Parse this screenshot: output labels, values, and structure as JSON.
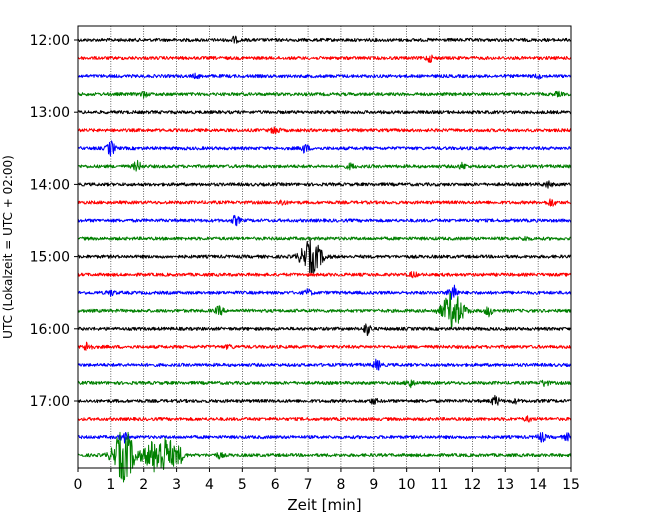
{
  "chart_data": {
    "type": "line",
    "title": "",
    "xlabel": "Zeit  [min]",
    "ylabel": "UTC (Lokalzeit = UTC + 02:00)",
    "xlim": [
      0,
      15
    ],
    "x_ticks": [
      "0",
      "1",
      "2",
      "3",
      "4",
      "5",
      "6",
      "7",
      "8",
      "9",
      "10",
      "11",
      "12",
      "13",
      "14",
      "15"
    ],
    "y_ticks": [
      "12:00",
      "13:00",
      "14:00",
      "15:00",
      "16:00",
      "17:00"
    ],
    "rows_per_hour": 4,
    "row_minutes": 15,
    "first_row_time": "12:00",
    "grid": "vertical dotted lines at each minute",
    "colors": [
      "#000000",
      "#ff0000",
      "#0000ff",
      "#008000"
    ],
    "series": [
      {
        "start": "12:00",
        "color": "#000000",
        "events": [
          {
            "t": 4.75,
            "amp": 0.35
          }
        ]
      },
      {
        "start": "12:15",
        "color": "#ff0000",
        "events": [
          {
            "t": 10.7,
            "amp": 0.4
          }
        ]
      },
      {
        "start": "12:30",
        "color": "#0000ff",
        "events": [
          {
            "t": 3.6,
            "amp": 0.2
          },
          {
            "t": 14.0,
            "amp": 0.2
          }
        ]
      },
      {
        "start": "12:45",
        "color": "#008000",
        "events": [
          {
            "t": 2.0,
            "amp": 0.3
          },
          {
            "t": 14.6,
            "amp": 0.2
          }
        ]
      },
      {
        "start": "13:00",
        "color": "#000000",
        "events": []
      },
      {
        "start": "13:15",
        "color": "#ff0000",
        "events": [
          {
            "t": 6.0,
            "amp": 0.45
          }
        ]
      },
      {
        "start": "13:30",
        "color": "#0000ff",
        "events": [
          {
            "t": 1.0,
            "amp": 0.9
          },
          {
            "t": 6.9,
            "amp": 0.5
          }
        ]
      },
      {
        "start": "13:45",
        "color": "#008000",
        "events": [
          {
            "t": 1.8,
            "amp": 0.6
          },
          {
            "t": 8.3,
            "amp": 0.3
          },
          {
            "t": 11.7,
            "amp": 0.35
          }
        ]
      },
      {
        "start": "14:00",
        "color": "#000000",
        "events": [
          {
            "t": 14.3,
            "amp": 0.35
          }
        ]
      },
      {
        "start": "14:15",
        "color": "#ff0000",
        "events": [
          {
            "t": 6.2,
            "amp": 0.3
          },
          {
            "t": 14.4,
            "amp": 0.45
          }
        ]
      },
      {
        "start": "14:30",
        "color": "#0000ff",
        "events": [
          {
            "t": 4.8,
            "amp": 0.55
          }
        ]
      },
      {
        "start": "14:45",
        "color": "#008000",
        "events": [
          {
            "t": 13.6,
            "amp": 0.2
          }
        ]
      },
      {
        "start": "15:00",
        "color": "#000000",
        "events": [
          {
            "t": 7.1,
            "amp": 2.0
          }
        ]
      },
      {
        "start": "15:15",
        "color": "#ff0000",
        "events": [
          {
            "t": 10.2,
            "amp": 0.3
          }
        ]
      },
      {
        "start": "15:30",
        "color": "#0000ff",
        "events": [
          {
            "t": 1.0,
            "amp": 0.3
          },
          {
            "t": 7.0,
            "amp": 0.35
          },
          {
            "t": 11.4,
            "amp": 1.4
          }
        ]
      },
      {
        "start": "15:45",
        "color": "#008000",
        "events": [
          {
            "t": 4.3,
            "amp": 0.5
          },
          {
            "t": 11.4,
            "amp": 2.2
          },
          {
            "t": 12.5,
            "amp": 0.6
          }
        ]
      },
      {
        "start": "16:00",
        "color": "#000000",
        "events": [
          {
            "t": 8.8,
            "amp": 0.7
          }
        ]
      },
      {
        "start": "16:15",
        "color": "#ff0000",
        "events": [
          {
            "t": 0.3,
            "amp": 0.6
          },
          {
            "t": 4.6,
            "amp": 0.2
          }
        ]
      },
      {
        "start": "16:30",
        "color": "#0000ff",
        "events": [
          {
            "t": 9.1,
            "amp": 0.6
          }
        ]
      },
      {
        "start": "16:45",
        "color": "#008000",
        "events": [
          {
            "t": 10.1,
            "amp": 0.5
          },
          {
            "t": 14.2,
            "amp": 0.35
          }
        ]
      },
      {
        "start": "17:00",
        "color": "#000000",
        "events": [
          {
            "t": 9.0,
            "amp": 0.3
          },
          {
            "t": 12.7,
            "amp": 0.6
          },
          {
            "t": 13.3,
            "amp": 0.2
          }
        ]
      },
      {
        "start": "17:15",
        "color": "#ff0000",
        "events": [
          {
            "t": 13.7,
            "amp": 0.25
          }
        ]
      },
      {
        "start": "17:30",
        "color": "#0000ff",
        "events": [
          {
            "t": 1.4,
            "amp": 0.6
          },
          {
            "t": 14.1,
            "amp": 0.55
          },
          {
            "t": 14.9,
            "amp": 0.35
          }
        ]
      },
      {
        "start": "17:45",
        "color": "#008000",
        "events": [
          {
            "t": 1.4,
            "amp": 3.2
          },
          {
            "t": 2.3,
            "amp": 1.6
          },
          {
            "t": 2.7,
            "amp": 1.8
          },
          {
            "t": 3.1,
            "amp": 0.7
          },
          {
            "t": 4.3,
            "amp": 0.3
          }
        ]
      }
    ]
  }
}
